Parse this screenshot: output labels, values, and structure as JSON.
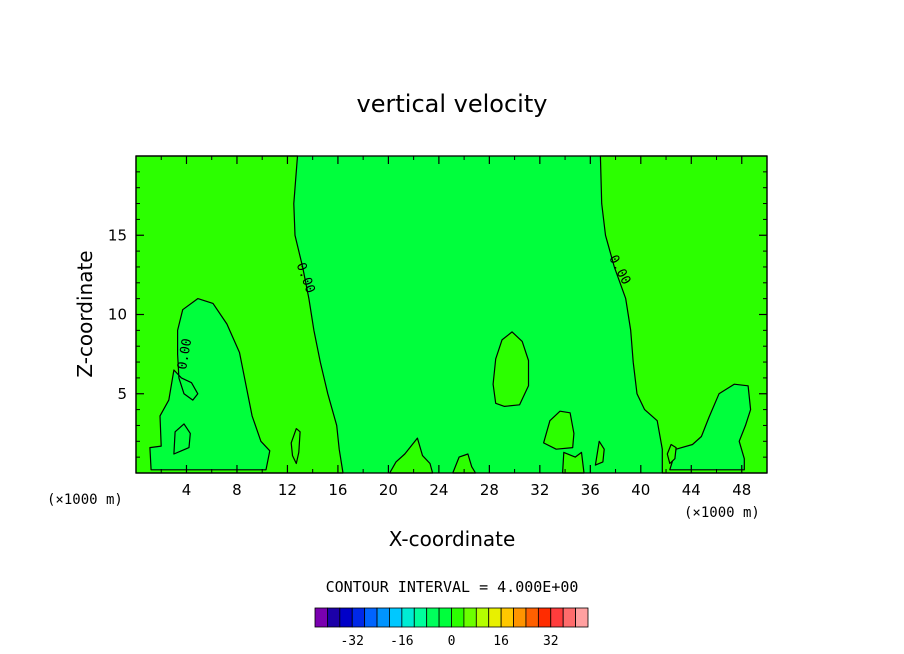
{
  "chart_data": {
    "type": "contour",
    "title": "vertical velocity",
    "xlabel": "X-coordinate",
    "ylabel": "Z-coordinate",
    "x_unit": "(×1000 m)",
    "xlim": [
      0,
      50
    ],
    "ylim": [
      0,
      20
    ],
    "xticks": [
      4,
      8,
      12,
      16,
      20,
      24,
      28,
      32,
      36,
      40,
      44,
      48
    ],
    "yticks": [
      5,
      10,
      15
    ],
    "contour_level_label": "0.00",
    "contour_interval_text": "CONTOUR INTERVAL = 4.000E+00",
    "colorbar": {
      "colors": [
        "#7a00b0",
        "#1c00a8",
        "#0000c8",
        "#0028e8",
        "#0064ff",
        "#0094ff",
        "#00c8ff",
        "#00ecd4",
        "#00ff9c",
        "#00ff5c",
        "#00ff3c",
        "#2cff00",
        "#6cff00",
        "#b4ff00",
        "#e8f000",
        "#ffc800",
        "#ff9400",
        "#ff6000",
        "#ff2c00",
        "#ff3c3c",
        "#ff6c6c",
        "#ffa0a0"
      ],
      "tick_labels": [
        "-32",
        "-16",
        "0",
        "16",
        "32"
      ],
      "tick_values": [
        -32,
        -16,
        0,
        16,
        32
      ]
    },
    "fill_colors": {
      "negative_band": "#00ff3c",
      "positive_band": "#2cff00",
      "outline": "#000000"
    },
    "regions": [
      {
        "sign": "positive",
        "outline": [
          [
            0,
            20
          ],
          [
            12.8,
            20
          ],
          [
            12.5,
            17
          ],
          [
            12.6,
            15
          ],
          [
            13.2,
            13
          ],
          [
            13.7,
            11
          ],
          [
            14.1,
            9
          ],
          [
            14.6,
            7
          ],
          [
            15.2,
            5
          ],
          [
            15.9,
            3
          ],
          [
            16.1,
            1.5
          ],
          [
            16.4,
            0
          ],
          [
            0,
            0
          ]
        ]
      },
      {
        "sign": "positive",
        "outline": [
          [
            36.8,
            20
          ],
          [
            36.9,
            17
          ],
          [
            37.2,
            15
          ],
          [
            37.9,
            13
          ],
          [
            38.8,
            11
          ],
          [
            39.2,
            9
          ],
          [
            39.4,
            7
          ],
          [
            39.7,
            5
          ],
          [
            40.3,
            4
          ],
          [
            41.3,
            3.3
          ],
          [
            41.7,
            1.5
          ],
          [
            41.7,
            0
          ],
          [
            50,
            0
          ],
          [
            50,
            20
          ]
        ]
      },
      {
        "sign": "negative",
        "outline": [
          [
            3.3,
            9
          ],
          [
            3.7,
            10.3
          ],
          [
            4.9,
            11
          ],
          [
            6.1,
            10.7
          ],
          [
            7.2,
            9.4
          ],
          [
            8.2,
            7.6
          ],
          [
            8.7,
            5.6
          ],
          [
            9.2,
            3.6
          ],
          [
            9.9,
            2
          ],
          [
            10.6,
            1.4
          ],
          [
            10.3,
            0.2
          ],
          [
            1.2,
            0.2
          ],
          [
            1.1,
            1.6
          ],
          [
            2,
            1.7
          ],
          [
            1.9,
            3.6
          ],
          [
            2.6,
            4.6
          ],
          [
            3,
            6.5
          ],
          [
            3.6,
            6
          ],
          [
            4.4,
            5.7
          ],
          [
            4.9,
            5
          ],
          [
            4.5,
            4.6
          ],
          [
            3.8,
            5
          ],
          [
            3.4,
            6
          ],
          [
            3.3,
            7.5
          ]
        ]
      },
      {
        "sign": "negative",
        "outline": [
          [
            42.3,
            0.2
          ],
          [
            42.8,
            1.5
          ],
          [
            44.1,
            1.8
          ],
          [
            44.8,
            2.3
          ],
          [
            45.4,
            3.5
          ],
          [
            46.2,
            5
          ],
          [
            47.4,
            5.6
          ],
          [
            48.5,
            5.5
          ],
          [
            48.7,
            4
          ],
          [
            48.3,
            3
          ],
          [
            47.8,
            2
          ],
          [
            48.2,
            0.9
          ],
          [
            48.2,
            0.2
          ]
        ]
      },
      {
        "sign": "positive",
        "outline": [
          [
            28.5,
            4.4
          ],
          [
            29.2,
            4.2
          ],
          [
            30.4,
            4.3
          ],
          [
            31.1,
            5.5
          ],
          [
            31.1,
            7.1
          ],
          [
            30.6,
            8.3
          ],
          [
            29.8,
            8.9
          ],
          [
            29,
            8.4
          ],
          [
            28.5,
            7.2
          ],
          [
            28.3,
            5.6
          ]
        ]
      },
      {
        "sign": "positive",
        "outline": [
          [
            32.3,
            1.9
          ],
          [
            32.8,
            3.3
          ],
          [
            33.6,
            3.9
          ],
          [
            34.4,
            3.8
          ],
          [
            34.7,
            2.5
          ],
          [
            34.6,
            1.6
          ],
          [
            33.3,
            1.5
          ]
        ]
      },
      {
        "sign": "positive",
        "outline": [
          [
            12.3,
            1.9
          ],
          [
            12.7,
            2.8
          ],
          [
            13,
            2.6
          ],
          [
            12.9,
            1.3
          ],
          [
            12.7,
            0.6
          ],
          [
            12.4,
            1.1
          ]
        ]
      },
      {
        "sign": "positive",
        "outline": [
          [
            42.1,
            1.2
          ],
          [
            42.4,
            1.8
          ],
          [
            42.8,
            1.6
          ],
          [
            42.7,
            0.9
          ],
          [
            42.3,
            0.6
          ]
        ]
      },
      {
        "sign": "negative",
        "outline": [
          [
            3,
            1.2
          ],
          [
            3.1,
            2.6
          ],
          [
            3.8,
            3.1
          ],
          [
            4.3,
            2.5
          ],
          [
            4.2,
            1.6
          ],
          [
            3.6,
            1.4
          ]
        ]
      },
      {
        "sign": "positive",
        "outline": [
          [
            20.1,
            0
          ],
          [
            20.6,
            0.7
          ],
          [
            21.3,
            1.2
          ],
          [
            22.3,
            2.2
          ],
          [
            22.7,
            1.1
          ],
          [
            23.3,
            0.6
          ],
          [
            23.5,
            0
          ]
        ]
      },
      {
        "sign": "positive",
        "outline": [
          [
            25.1,
            0
          ],
          [
            25.6,
            1
          ],
          [
            26.3,
            1.2
          ],
          [
            26.6,
            0.4
          ],
          [
            26.9,
            0
          ]
        ]
      },
      {
        "sign": "positive",
        "outline": [
          [
            33.8,
            0
          ],
          [
            33.9,
            1.3
          ],
          [
            34.8,
            1
          ],
          [
            35.3,
            1.3
          ],
          [
            35.5,
            0
          ]
        ]
      },
      {
        "sign": "positive",
        "outline": [
          [
            36.4,
            0.5
          ],
          [
            36.7,
            2
          ],
          [
            37.1,
            1.5
          ],
          [
            37,
            0.7
          ]
        ]
      }
    ]
  }
}
